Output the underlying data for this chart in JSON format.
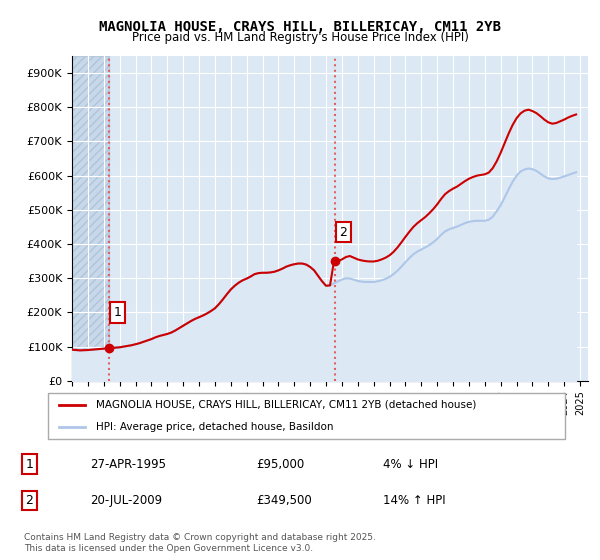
{
  "title": "MAGNOLIA HOUSE, CRAYS HILL, BILLERICAY, CM11 2YB",
  "subtitle": "Price paid vs. HM Land Registry's House Price Index (HPI)",
  "legend_line1": "MAGNOLIA HOUSE, CRAYS HILL, BILLERICAY, CM11 2YB (detached house)",
  "legend_line2": "HPI: Average price, detached house, Basildon",
  "annotation1": {
    "num": "1",
    "date": "27-APR-1995",
    "price": "£95,000",
    "pct": "4% ↓ HPI"
  },
  "annotation2": {
    "num": "2",
    "date": "20-JUL-2009",
    "price": "£349,500",
    "pct": "14% ↑ HPI"
  },
  "footer": "Contains HM Land Registry data © Crown copyright and database right 2025.\nThis data is licensed under the Open Government Licence v3.0.",
  "sale1_year": 1995.32,
  "sale2_year": 2009.55,
  "sale1_price": 95000,
  "sale2_price": 349500,
  "hpi_color": "#aec6e8",
  "price_color": "#cc0000",
  "dashed_line_color": "#e06060",
  "background_plot": "#dce9f5",
  "background_hatch": "#c8d8ea",
  "ylim": [
    0,
    950000
  ],
  "xlim_start": 1993,
  "xlim_end": 2025.5,
  "ylabel_ticks": [
    0,
    100000,
    200000,
    300000,
    400000,
    500000,
    600000,
    700000,
    800000,
    900000
  ],
  "ylabel_labels": [
    "£0",
    "£100K",
    "£200K",
    "£300K",
    "£400K",
    "£500K",
    "£600K",
    "£700K",
    "£800K",
    "£900K"
  ],
  "hpi_data_years": [
    1993.0,
    1993.25,
    1993.5,
    1993.75,
    1994.0,
    1994.25,
    1994.5,
    1994.75,
    1995.0,
    1995.25,
    1995.5,
    1995.75,
    1996.0,
    1996.25,
    1996.5,
    1996.75,
    1997.0,
    1997.25,
    1997.5,
    1997.75,
    1998.0,
    1998.25,
    1998.5,
    1998.75,
    1999.0,
    1999.25,
    1999.5,
    1999.75,
    2000.0,
    2000.25,
    2000.5,
    2000.75,
    2001.0,
    2001.25,
    2001.5,
    2001.75,
    2002.0,
    2002.25,
    2002.5,
    2002.75,
    2003.0,
    2003.25,
    2003.5,
    2003.75,
    2004.0,
    2004.25,
    2004.5,
    2004.75,
    2005.0,
    2005.25,
    2005.5,
    2005.75,
    2006.0,
    2006.25,
    2006.5,
    2006.75,
    2007.0,
    2007.25,
    2007.5,
    2007.75,
    2008.0,
    2008.25,
    2008.5,
    2008.75,
    2009.0,
    2009.25,
    2009.5,
    2009.75,
    2010.0,
    2010.25,
    2010.5,
    2010.75,
    2011.0,
    2011.25,
    2011.5,
    2011.75,
    2012.0,
    2012.25,
    2012.5,
    2012.75,
    2013.0,
    2013.25,
    2013.5,
    2013.75,
    2014.0,
    2014.25,
    2014.5,
    2014.75,
    2015.0,
    2015.25,
    2015.5,
    2015.75,
    2016.0,
    2016.25,
    2016.5,
    2016.75,
    2017.0,
    2017.25,
    2017.5,
    2017.75,
    2018.0,
    2018.25,
    2018.5,
    2018.75,
    2019.0,
    2019.25,
    2019.5,
    2019.75,
    2020.0,
    2020.25,
    2020.5,
    2020.75,
    2021.0,
    2021.25,
    2021.5,
    2021.75,
    2022.0,
    2022.25,
    2022.5,
    2022.75,
    2023.0,
    2023.25,
    2023.5,
    2023.75,
    2024.0,
    2024.25,
    2024.5,
    2024.75
  ],
  "hpi_data_values": [
    91000,
    90000,
    89000,
    89500,
    90000,
    91000,
    92000,
    93000,
    94000,
    95000,
    96000,
    97000,
    98000,
    100000,
    102000,
    104000,
    107000,
    110000,
    114000,
    118000,
    122000,
    127000,
    131000,
    134000,
    137000,
    141000,
    147000,
    154000,
    161000,
    168000,
    175000,
    181000,
    186000,
    191000,
    197000,
    204000,
    212000,
    224000,
    238000,
    253000,
    267000,
    278000,
    287000,
    294000,
    299000,
    305000,
    312000,
    315000,
    316000,
    316000,
    317000,
    319000,
    323000,
    328000,
    334000,
    338000,
    341000,
    343000,
    343000,
    340000,
    333000,
    323000,
    307000,
    291000,
    278000,
    279000,
    285000,
    291000,
    296000,
    300000,
    299000,
    296000,
    292000,
    290000,
    289000,
    289000,
    289000,
    291000,
    294000,
    298000,
    304000,
    312000,
    322000,
    334000,
    347000,
    359000,
    370000,
    378000,
    384000,
    390000,
    397000,
    405000,
    415000,
    427000,
    437000,
    443000,
    447000,
    451000,
    456000,
    461000,
    465000,
    467000,
    468000,
    468000,
    468000,
    471000,
    480000,
    496000,
    514000,
    536000,
    560000,
    582000,
    600000,
    612000,
    618000,
    621000,
    619000,
    614000,
    606000,
    598000,
    592000,
    590000,
    591000,
    594000,
    598000,
    602000,
    606000,
    610000
  ],
  "price_data_years": [
    1993.0,
    1993.25,
    1993.5,
    1993.75,
    1994.0,
    1994.25,
    1994.5,
    1994.75,
    1995.0,
    1995.25,
    1995.5,
    1995.75,
    1996.0,
    1996.25,
    1996.5,
    1996.75,
    1997.0,
    1997.25,
    1997.5,
    1997.75,
    1998.0,
    1998.25,
    1998.5,
    1998.75,
    1999.0,
    1999.25,
    1999.5,
    1999.75,
    2000.0,
    2000.25,
    2000.5,
    2000.75,
    2001.0,
    2001.25,
    2001.5,
    2001.75,
    2002.0,
    2002.25,
    2002.5,
    2002.75,
    2003.0,
    2003.25,
    2003.5,
    2003.75,
    2004.0,
    2004.25,
    2004.5,
    2004.75,
    2005.0,
    2005.25,
    2005.5,
    2005.75,
    2006.0,
    2006.25,
    2006.5,
    2006.75,
    2007.0,
    2007.25,
    2007.5,
    2007.75,
    2008.0,
    2008.25,
    2008.5,
    2008.75,
    2009.0,
    2009.25,
    2009.5,
    2009.75,
    2010.0,
    2010.25,
    2010.5,
    2010.75,
    2011.0,
    2011.25,
    2011.5,
    2011.75,
    2012.0,
    2012.25,
    2012.5,
    2012.75,
    2013.0,
    2013.25,
    2013.5,
    2013.75,
    2014.0,
    2014.25,
    2014.5,
    2014.75,
    2015.0,
    2015.25,
    2015.5,
    2015.75,
    2016.0,
    2016.25,
    2016.5,
    2016.75,
    2017.0,
    2017.25,
    2017.5,
    2017.75,
    2018.0,
    2018.25,
    2018.5,
    2018.75,
    2019.0,
    2019.25,
    2019.5,
    2019.75,
    2020.0,
    2020.25,
    2020.5,
    2020.75,
    2021.0,
    2021.25,
    2021.5,
    2021.75,
    2022.0,
    2022.25,
    2022.5,
    2022.75,
    2023.0,
    2023.25,
    2023.5,
    2023.75,
    2024.0,
    2024.25,
    2024.5,
    2024.75
  ],
  "price_data_values": [
    91000,
    90000,
    89000,
    89500,
    90000,
    91000,
    92000,
    93000,
    94000,
    95000,
    96000,
    97000,
    98000,
    100000,
    102000,
    104000,
    107000,
    110000,
    114000,
    118000,
    122000,
    127000,
    131000,
    134000,
    137000,
    141000,
    147000,
    154000,
    161000,
    168000,
    175000,
    181000,
    186000,
    191000,
    197000,
    204000,
    212000,
    224000,
    238000,
    253000,
    267000,
    278000,
    287000,
    294000,
    299000,
    305000,
    312000,
    315000,
    316000,
    316000,
    317000,
    319000,
    323000,
    328000,
    334000,
    338000,
    341000,
    343000,
    343000,
    340000,
    333000,
    323000,
    307000,
    291000,
    278000,
    279000,
    349500,
    350000,
    355000,
    362000,
    365000,
    360000,
    355000,
    352000,
    350000,
    349000,
    349000,
    351000,
    355000,
    360000,
    367000,
    377000,
    390000,
    405000,
    421000,
    436000,
    450000,
    461000,
    470000,
    479000,
    490000,
    502000,
    516000,
    532000,
    546000,
    555000,
    562000,
    568000,
    576000,
    584000,
    591000,
    596000,
    600000,
    602000,
    604000,
    609000,
    622000,
    642000,
    667000,
    695000,
    723000,
    748000,
    768000,
    782000,
    790000,
    793000,
    789000,
    783000,
    774000,
    764000,
    756000,
    752000,
    754000,
    759000,
    764000,
    770000,
    775000,
    779000
  ]
}
